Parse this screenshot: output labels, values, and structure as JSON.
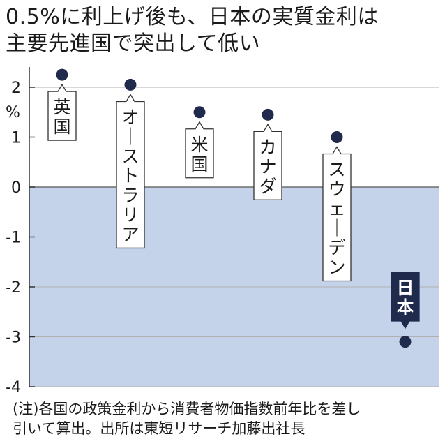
{
  "title": {
    "line1": "0.5%に利上げ後も、日本の実質金利は",
    "line2": "主要先進国で突出して低い"
  },
  "note": {
    "line1": "(注)各国の政策金利から消費者物価指数前年比を差し",
    "line2": "引いて算出。出所は東短リサーチ加藤出社長"
  },
  "colors": {
    "negative_area": "#c5d3ea",
    "dot": "#1f2a4d",
    "axis": "#333333",
    "grid": "#b0b0b0",
    "highlight_label_bg": "#1f2a4d"
  },
  "chart_data": {
    "type": "scatter",
    "title": "0.5%に利上げ後も、日本の実質金利は主要先進国で突出して低い",
    "ylabel": "%",
    "ylim": [
      -4,
      2.5
    ],
    "yticks": [
      2,
      1,
      0,
      -1,
      -2,
      -3,
      -4
    ],
    "ytick_labels": [
      "2",
      "1",
      "0",
      "-1",
      "-2",
      "-3",
      "-4"
    ],
    "grid": true,
    "negative_region_shaded": true,
    "categories": [
      "英国",
      "オーストラリア",
      "米国",
      "カナダ",
      "スウェーデン",
      "日本"
    ],
    "values": [
      2.25,
      2.05,
      1.5,
      1.45,
      1.0,
      -3.1
    ],
    "highlight": "日本"
  }
}
